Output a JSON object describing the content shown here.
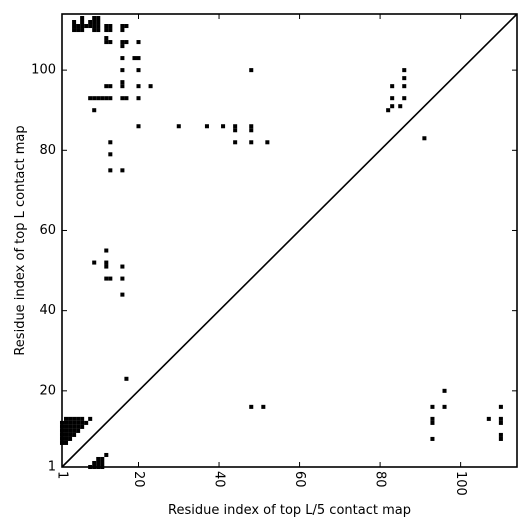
{
  "chart_data": {
    "type": "scatter",
    "title": "",
    "xlabel": "Residue index of top L/5 contact map",
    "ylabel": "Residue index of top L contact map",
    "xlim": [
      1,
      114
    ],
    "ylim": [
      1,
      114
    ],
    "xticks": [
      1,
      20,
      40,
      60,
      80,
      100
    ],
    "yticks": [
      1,
      20,
      40,
      60,
      80,
      100
    ],
    "x_tick_rotation": -90,
    "grid": false,
    "legend": "none",
    "diagonal": {
      "from": [
        1,
        1
      ],
      "to": [
        114,
        114
      ],
      "color": "#000000"
    },
    "marker_color": "#000000",
    "marker": "square",
    "series": [
      {
        "points": [
          [
            1,
            7
          ],
          [
            2,
            7
          ],
          [
            1,
            8
          ],
          [
            2,
            8
          ],
          [
            3,
            8
          ],
          [
            1,
            9
          ],
          [
            2,
            9
          ],
          [
            3,
            9
          ],
          [
            4,
            9
          ],
          [
            1,
            10
          ],
          [
            2,
            10
          ],
          [
            3,
            10
          ],
          [
            4,
            10
          ],
          [
            5,
            10
          ],
          [
            1,
            11
          ],
          [
            2,
            11
          ],
          [
            3,
            11
          ],
          [
            4,
            11
          ],
          [
            5,
            11
          ],
          [
            6,
            11
          ],
          [
            1,
            12
          ],
          [
            2,
            12
          ],
          [
            3,
            12
          ],
          [
            4,
            12
          ],
          [
            5,
            12
          ],
          [
            6,
            12
          ],
          [
            7,
            12
          ],
          [
            2,
            13
          ],
          [
            3,
            13
          ],
          [
            4,
            13
          ],
          [
            5,
            13
          ],
          [
            6,
            13
          ],
          [
            8,
            13
          ],
          [
            8,
            1
          ],
          [
            9,
            1
          ],
          [
            10,
            1
          ],
          [
            11,
            1
          ],
          [
            9,
            2
          ],
          [
            10,
            2
          ],
          [
            11,
            2
          ],
          [
            10,
            3
          ],
          [
            11,
            3
          ],
          [
            12,
            4
          ],
          [
            17,
            23
          ],
          [
            9,
            52
          ],
          [
            12,
            55
          ],
          [
            12,
            52
          ],
          [
            12,
            51
          ],
          [
            12,
            48
          ],
          [
            13,
            48
          ],
          [
            16,
            51
          ],
          [
            16,
            48
          ],
          [
            16,
            44
          ],
          [
            13,
            82
          ],
          [
            13,
            79
          ],
          [
            13,
            75
          ],
          [
            16,
            75
          ],
          [
            4,
            110
          ],
          [
            5,
            110
          ],
          [
            6,
            110
          ],
          [
            9,
            110
          ],
          [
            10,
            110
          ],
          [
            12,
            110
          ],
          [
            13,
            110
          ],
          [
            16,
            110
          ],
          [
            4,
            111
          ],
          [
            5,
            111
          ],
          [
            6,
            111
          ],
          [
            7,
            111
          ],
          [
            8,
            111
          ],
          [
            9,
            111
          ],
          [
            10,
            111
          ],
          [
            12,
            111
          ],
          [
            13,
            111
          ],
          [
            16,
            111
          ],
          [
            17,
            111
          ],
          [
            4,
            112
          ],
          [
            6,
            112
          ],
          [
            8,
            112
          ],
          [
            9,
            112
          ],
          [
            10,
            112
          ],
          [
            6,
            113
          ],
          [
            9,
            113
          ],
          [
            10,
            113
          ],
          [
            12,
            108
          ],
          [
            13,
            107
          ],
          [
            12,
            107
          ],
          [
            16,
            107
          ],
          [
            17,
            107
          ],
          [
            20,
            107
          ],
          [
            16,
            106
          ],
          [
            16,
            103
          ],
          [
            19,
            103
          ],
          [
            20,
            103
          ],
          [
            16,
            100
          ],
          [
            20,
            100
          ],
          [
            16,
            97
          ],
          [
            12,
            96
          ],
          [
            13,
            96
          ],
          [
            16,
            96
          ],
          [
            20,
            96
          ],
          [
            23,
            96
          ],
          [
            8,
            93
          ],
          [
            9,
            93
          ],
          [
            10,
            93
          ],
          [
            11,
            93
          ],
          [
            12,
            93
          ],
          [
            13,
            93
          ],
          [
            16,
            93
          ],
          [
            17,
            93
          ],
          [
            20,
            93
          ],
          [
            9,
            90
          ],
          [
            20,
            86
          ],
          [
            30,
            86
          ],
          [
            37,
            86
          ],
          [
            41,
            86
          ],
          [
            44,
            86
          ],
          [
            48,
            86
          ],
          [
            44,
            85
          ],
          [
            48,
            85
          ],
          [
            44,
            82
          ],
          [
            48,
            82
          ],
          [
            52,
            82
          ],
          [
            48,
            100
          ],
          [
            82,
            90
          ],
          [
            83,
            91
          ],
          [
            85,
            91
          ],
          [
            83,
            93
          ],
          [
            86,
            93
          ],
          [
            83,
            96
          ],
          [
            86,
            96
          ],
          [
            86,
            98
          ],
          [
            86,
            100
          ],
          [
            91,
            83
          ],
          [
            48,
            16
          ],
          [
            51,
            16
          ],
          [
            93,
            16
          ],
          [
            96,
            16
          ],
          [
            96,
            20
          ],
          [
            93,
            13
          ],
          [
            93,
            12
          ],
          [
            93,
            8
          ],
          [
            107,
            13
          ],
          [
            110,
            16
          ],
          [
            110,
            13
          ],
          [
            110,
            12
          ],
          [
            110,
            9
          ],
          [
            110,
            8
          ]
        ]
      }
    ]
  }
}
